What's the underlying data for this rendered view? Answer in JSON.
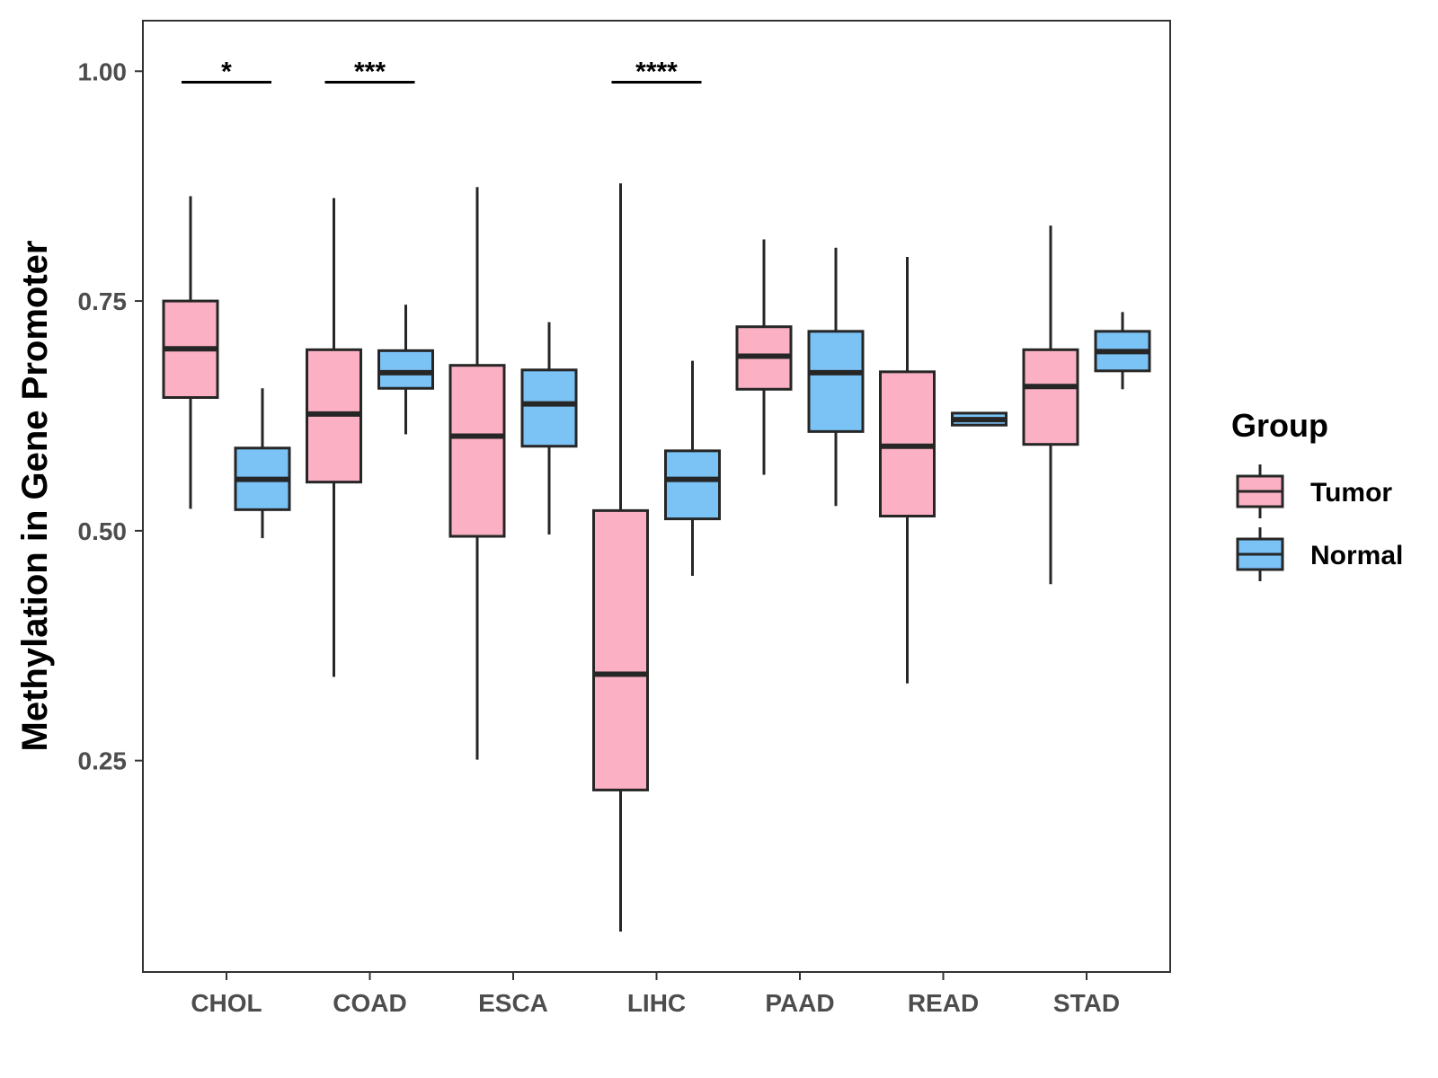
{
  "chart_data": {
    "type": "boxplot",
    "title": "",
    "xlabel": "",
    "ylabel": "Methylation in Gene Promoter",
    "ylim": [
      0.02,
      1.055
    ],
    "yticks": [
      0.25,
      0.5,
      0.75,
      1.0
    ],
    "ytick_labels": [
      "0.25",
      "0.50",
      "0.75",
      "1.00"
    ],
    "categories": [
      "CHOL",
      "COAD",
      "ESCA",
      "LIHC",
      "PAAD",
      "READ",
      "STAD"
    ],
    "grid": false,
    "legend": {
      "title": "Group",
      "position": "right",
      "entries": [
        {
          "name": "Tumor",
          "color": "#FBB1C3"
        },
        {
          "name": "Normal",
          "color": "#7BC2F5"
        }
      ]
    },
    "series": [
      {
        "name": "Tumor",
        "color": "#FBB1C3",
        "boxes": [
          {
            "category": "CHOL",
            "whisker_low": 0.524,
            "q1": 0.645,
            "median": 0.698,
            "q3": 0.75,
            "whisker_high": 0.864
          },
          {
            "category": "COAD",
            "whisker_low": 0.341,
            "q1": 0.553,
            "median": 0.627,
            "q3": 0.697,
            "whisker_high": 0.862
          },
          {
            "category": "ESCA",
            "whisker_low": 0.251,
            "q1": 0.494,
            "median": 0.603,
            "q3": 0.68,
            "whisker_high": 0.874
          },
          {
            "category": "LIHC",
            "whisker_low": 0.064,
            "q1": 0.218,
            "median": 0.344,
            "q3": 0.522,
            "whisker_high": 0.878
          },
          {
            "category": "PAAD",
            "whisker_low": 0.561,
            "q1": 0.654,
            "median": 0.69,
            "q3": 0.722,
            "whisker_high": 0.817
          },
          {
            "category": "READ",
            "whisker_low": 0.334,
            "q1": 0.516,
            "median": 0.592,
            "q3": 0.673,
            "whisker_high": 0.798
          },
          {
            "category": "STAD",
            "whisker_low": 0.442,
            "q1": 0.594,
            "median": 0.657,
            "q3": 0.697,
            "whisker_high": 0.832
          }
        ]
      },
      {
        "name": "Normal",
        "color": "#7BC2F5",
        "boxes": [
          {
            "category": "CHOL",
            "whisker_low": 0.492,
            "q1": 0.523,
            "median": 0.556,
            "q3": 0.59,
            "whisker_high": 0.655
          },
          {
            "category": "COAD",
            "whisker_low": 0.605,
            "q1": 0.655,
            "median": 0.672,
            "q3": 0.696,
            "whisker_high": 0.746
          },
          {
            "category": "ESCA",
            "whisker_low": 0.496,
            "q1": 0.592,
            "median": 0.638,
            "q3": 0.675,
            "whisker_high": 0.727
          },
          {
            "category": "LIHC",
            "whisker_low": 0.451,
            "q1": 0.513,
            "median": 0.556,
            "q3": 0.587,
            "whisker_high": 0.685
          },
          {
            "category": "PAAD",
            "whisker_low": 0.527,
            "q1": 0.608,
            "median": 0.672,
            "q3": 0.717,
            "whisker_high": 0.808
          },
          {
            "category": "READ",
            "whisker_low": 0.614,
            "q1": 0.615,
            "median": 0.621,
            "q3": 0.628,
            "whisker_high": 0.629
          },
          {
            "category": "STAD",
            "whisker_low": 0.654,
            "q1": 0.674,
            "median": 0.695,
            "q3": 0.717,
            "whisker_high": 0.738
          }
        ]
      }
    ],
    "annotations": [
      {
        "category": "CHOL",
        "label": "*",
        "y": 0.988
      },
      {
        "category": "COAD",
        "label": "***",
        "y": 0.988
      },
      {
        "category": "LIHC",
        "label": "****",
        "y": 0.988
      }
    ]
  }
}
